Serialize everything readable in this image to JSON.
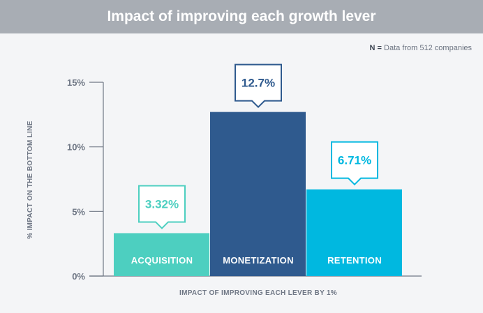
{
  "header": {
    "title": "Impact of improving each growth lever"
  },
  "note": {
    "key": "N =",
    "text": "Data from 512 companies"
  },
  "chart_data": {
    "type": "bar",
    "title": "Impact of improving each growth lever",
    "xlabel": "IMPACT OF IMPROVING EACH LEVER BY 1%",
    "ylabel": "% IMPACT ON THE BOTTOM LINE",
    "ylim": [
      0,
      15
    ],
    "yticks": [
      0,
      5,
      10,
      15
    ],
    "ytick_labels": [
      "0%",
      "5%",
      "10%",
      "15%"
    ],
    "grid": false,
    "categories": [
      "ACQUISITION",
      "MONETIZATION",
      "RETENTION"
    ],
    "values": [
      3.32,
      12.7,
      6.71
    ],
    "value_labels": [
      "3.32%",
      "12.7%",
      "6.71%"
    ],
    "colors": [
      "#4dcfc0",
      "#2f5a8e",
      "#00b8e0"
    ]
  }
}
